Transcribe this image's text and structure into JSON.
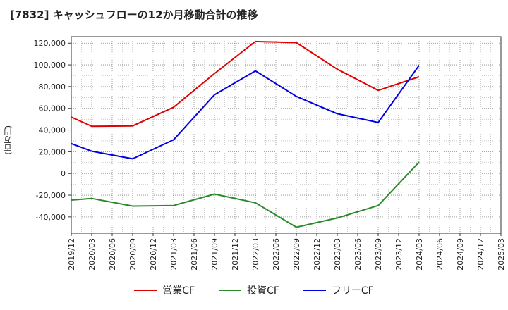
{
  "title": "[7832]  キャッシュフローの12か月移動合計の推移",
  "chart_data": {
    "type": "line",
    "title": "[7832]  キャッシュフローの12か月移動合計の推移",
    "ylabel": "(百万円)",
    "xlabel": "",
    "ylim": [
      -55000,
      126000
    ],
    "yticks": [
      -40000,
      -20000,
      0,
      20000,
      40000,
      60000,
      80000,
      100000,
      120000
    ],
    "ytick_labels": [
      "-40,000",
      "-20,000",
      "0",
      "20,000",
      "40,000",
      "60,000",
      "80,000",
      "100,000",
      "120,000"
    ],
    "x_ticks": [
      "2019/12",
      "2020/03",
      "2020/06",
      "2020/09",
      "2020/12",
      "2021/03",
      "2021/06",
      "2021/09",
      "2021/12",
      "2022/03",
      "2022/06",
      "2022/09",
      "2022/12",
      "2023/03",
      "2023/06",
      "2023/09",
      "2023/12",
      "2024/03",
      "2024/06",
      "2024/09",
      "2024/12",
      "2025/03"
    ],
    "grid": true,
    "legend_position": "bottom",
    "series": [
      {
        "name": "営業CF",
        "color": "#e00000",
        "points": [
          [
            "2019/12",
            52000
          ],
          [
            "2020/03",
            43500
          ],
          [
            "2020/09",
            43800
          ],
          [
            "2021/03",
            61000
          ],
          [
            "2021/09",
            92000
          ],
          [
            "2022/03",
            121500
          ],
          [
            "2022/09",
            120500
          ],
          [
            "2023/03",
            96000
          ],
          [
            "2023/09",
            76500
          ],
          [
            "2024/03",
            89000
          ]
        ]
      },
      {
        "name": "投資CF",
        "color": "#2a8a2a",
        "points": [
          [
            "2019/12",
            -24500
          ],
          [
            "2020/03",
            -23000
          ],
          [
            "2020/09",
            -30000
          ],
          [
            "2021/03",
            -29500
          ],
          [
            "2021/09",
            -19000
          ],
          [
            "2022/03",
            -27000
          ],
          [
            "2022/09",
            -49500
          ],
          [
            "2023/03",
            -41000
          ],
          [
            "2023/09",
            -29500
          ],
          [
            "2024/03",
            10500
          ]
        ]
      },
      {
        "name": "フリーCF",
        "color": "#0000e0",
        "points": [
          [
            "2019/12",
            27500
          ],
          [
            "2020/03",
            20500
          ],
          [
            "2020/09",
            13500
          ],
          [
            "2021/03",
            31000
          ],
          [
            "2021/09",
            72500
          ],
          [
            "2022/03",
            94500
          ],
          [
            "2022/09",
            71000
          ],
          [
            "2023/03",
            55000
          ],
          [
            "2023/09",
            47000
          ],
          [
            "2024/03",
            99500
          ]
        ]
      }
    ]
  }
}
